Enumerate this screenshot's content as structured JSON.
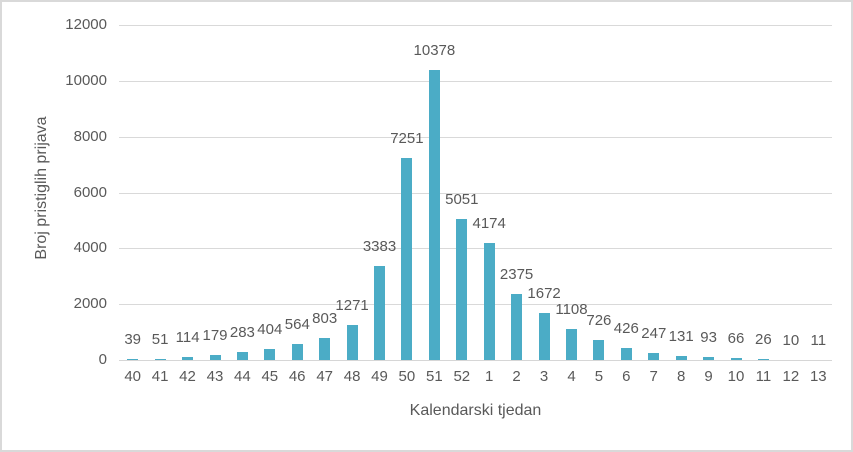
{
  "chart_data": {
    "type": "bar",
    "title": "",
    "xlabel": "Kalendarski tjedan",
    "ylabel": "Broj pristiglih prijava",
    "categories": [
      "40",
      "41",
      "42",
      "43",
      "44",
      "45",
      "46",
      "47",
      "48",
      "49",
      "50",
      "51",
      "52",
      "1",
      "2",
      "3",
      "4",
      "5",
      "6",
      "7",
      "8",
      "9",
      "10",
      "11",
      "12",
      "13"
    ],
    "values": [
      39,
      51,
      114,
      179,
      283,
      404,
      564,
      803,
      1271,
      3383,
      7251,
      10378,
      5051,
      4174,
      2375,
      1672,
      1108,
      726,
      426,
      247,
      131,
      93,
      66,
      26,
      10,
      11
    ],
    "ylim": [
      0,
      12000
    ],
    "ytick_step": 2000,
    "ytick_labels": [
      "0",
      "2000",
      "4000",
      "6000",
      "8000",
      "10000",
      "12000"
    ],
    "grid": "horizontal",
    "legend": "none",
    "data_labels": true,
    "bar_color": "#4BACC6"
  },
  "colors": {
    "bar": "#4BACC6",
    "gridline": "#D9D9D9",
    "axis_line": "#D6D6D6",
    "text": "#595959",
    "border": "#D9D9D9",
    "background": "#FFFFFF"
  }
}
